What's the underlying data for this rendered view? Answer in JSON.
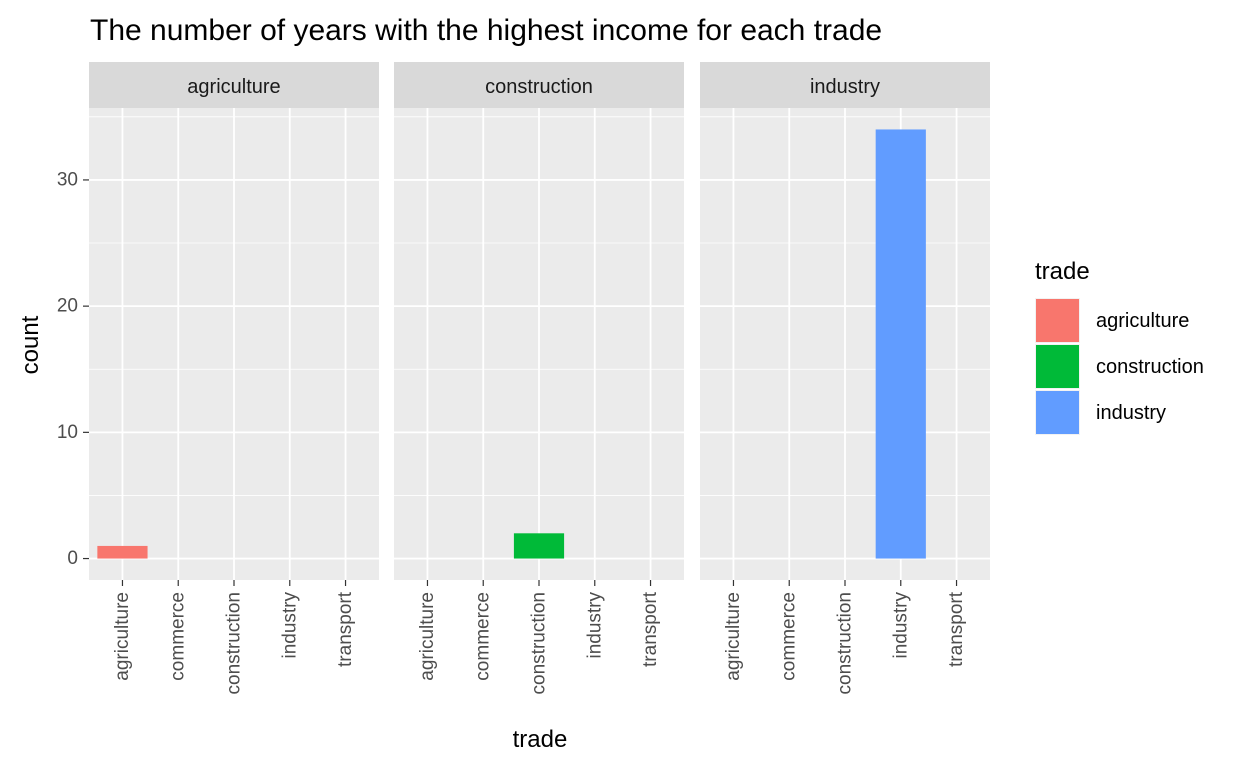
{
  "chart_data": {
    "type": "bar",
    "title": "The number of years with the highest income for each trade",
    "xlabel": "trade",
    "ylabel": "count",
    "categories": [
      "agriculture",
      "commerce",
      "construction",
      "industry",
      "transport"
    ],
    "ylim": [
      -1.7,
      35.7
    ],
    "yticks": [
      0,
      10,
      20,
      30
    ],
    "grid": true,
    "legend_title": "trade",
    "legend_position": "right",
    "facets": [
      {
        "label": "agriculture",
        "values": [
          1,
          0,
          0,
          0,
          0
        ]
      },
      {
        "label": "construction",
        "values": [
          0,
          0,
          2,
          0,
          0
        ]
      },
      {
        "label": "industry",
        "values": [
          0,
          0,
          0,
          34,
          0
        ]
      }
    ],
    "legend": [
      {
        "label": "agriculture",
        "color": "#F8766D"
      },
      {
        "label": "construction",
        "color": "#00BA38"
      },
      {
        "label": "industry",
        "color": "#619CFF"
      }
    ]
  },
  "colors": {
    "panel_background": "#EBEBEB",
    "strip_background": "#D9D9D9",
    "grid": "#FFFFFF"
  }
}
